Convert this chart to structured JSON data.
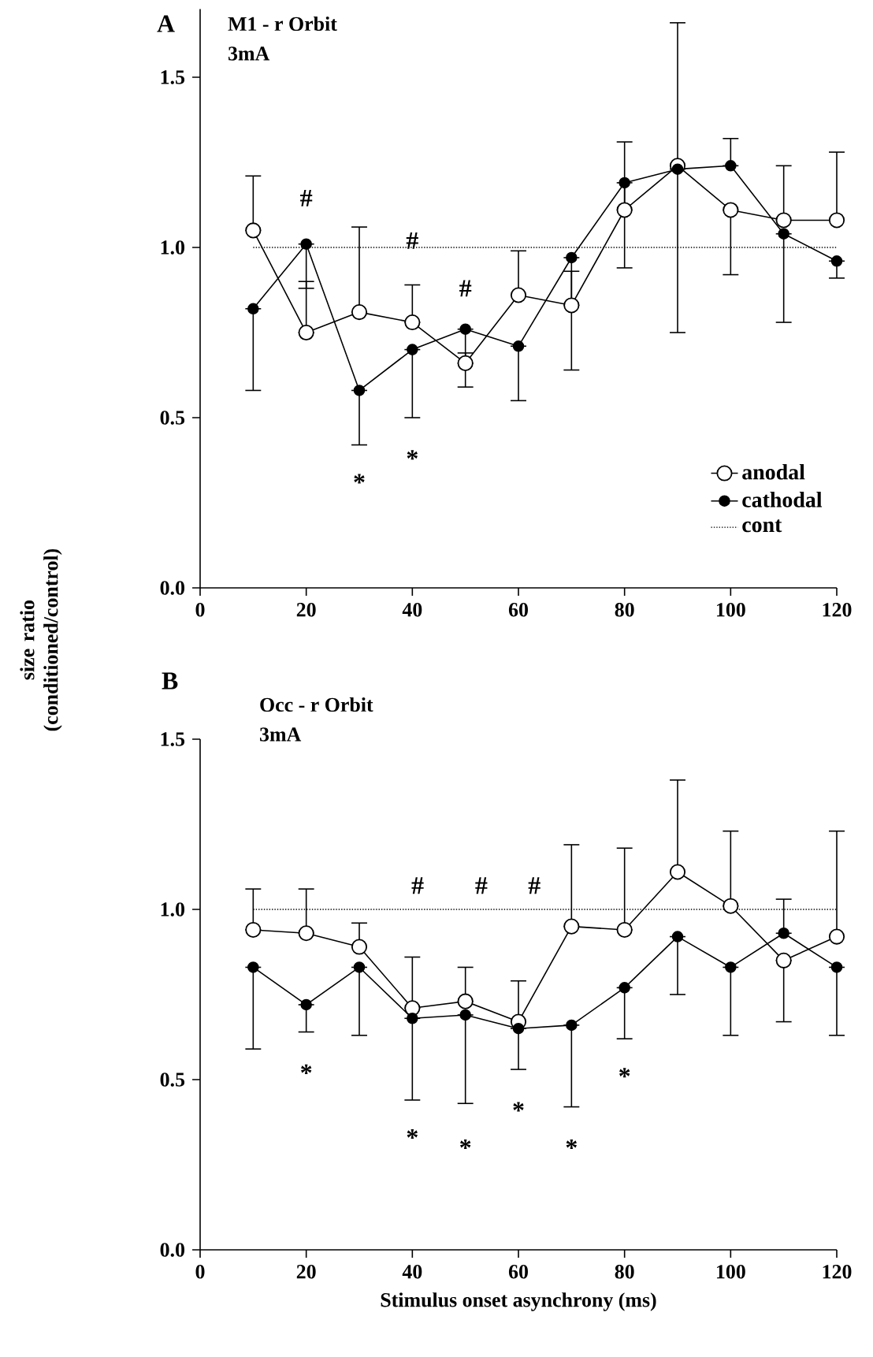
{
  "chart_data": [
    {
      "type": "line",
      "title": "A",
      "subtitle": "M1 - r Orbit",
      "ylabel": "size ratio (conditioned/control)",
      "x": [
        10,
        20,
        30,
        40,
        50,
        60,
        70,
        80,
        90,
        100,
        110,
        120
      ],
      "series": [
        {
          "name": "anodal",
          "color": "#000000",
          "values": [
            1.05,
            0.75,
            0.81,
            0.78,
            0.66,
            0.86,
            0.83,
            1.11,
            1.24,
            1.11,
            1.08,
            1.08
          ],
          "errors": [
            [
              1.05,
              1.21
            ],
            [
              0.75,
              0.9
            ],
            [
              0.81,
              1.06
            ],
            [
              0.78,
              0.89
            ],
            [
              0.66,
              0.69
            ],
            [
              0.86,
              0.99
            ],
            [
              0.83,
              0.93
            ],
            [
              1.11,
              1.31
            ],
            [
              1.24,
              1.66
            ],
            [
              0.92,
              1.11
            ],
            [
              1.08,
              1.24
            ],
            [
              1.08,
              1.28
            ]
          ]
        },
        {
          "name": "cathodal",
          "color": "#000000",
          "values": [
            0.82,
            1.01,
            0.58,
            0.7,
            0.76,
            0.71,
            0.97,
            1.19,
            1.23,
            1.24,
            1.04,
            0.96
          ],
          "errors": [
            [
              0.58,
              0.82
            ],
            [
              0.88,
              1.01
            ],
            [
              0.42,
              0.58
            ],
            [
              0.5,
              0.7
            ],
            [
              0.59,
              0.76
            ],
            [
              0.55,
              0.71
            ],
            [
              0.64,
              0.97
            ],
            [
              0.94,
              1.19
            ],
            [
              0.75,
              1.23
            ],
            [
              1.24,
              1.32
            ],
            [
              0.78,
              1.04
            ],
            [
              0.91,
              0.96
            ]
          ]
        }
      ],
      "ref_lines": [
        {
          "axis": "y",
          "value": 1.0,
          "label": "cont",
          "color": "#000000",
          "line_style": "dotted"
        }
      ],
      "marker": "circle",
      "line_style": "solid",
      "xlim": [
        0,
        120
      ],
      "xticks": [
        0,
        20,
        40,
        60,
        80,
        100,
        120
      ],
      "ylim": [
        0,
        1.7
      ],
      "yticks": [
        {
          "value": 0,
          "label": "0.0"
        },
        {
          "value": 0.5,
          "label": "0.5"
        },
        {
          "value": 1.0,
          "label": "1.0"
        },
        {
          "value": 1.5,
          "label": "1.5"
        }
      ],
      "legend": "bottom right",
      "annotations": [
        "3mA",
        "#",
        "#",
        "#",
        "*",
        "*"
      ]
    },
    {
      "type": "line",
      "title": "B",
      "subtitle": "Occ - r Orbit",
      "xlabel": "Stimulus onset  asynchrony (ms)",
      "x": [
        10,
        20,
        30,
        40,
        50,
        60,
        70,
        80,
        90,
        100,
        110,
        120
      ],
      "series": [
        {
          "color": "#000000",
          "values": [
            0.94,
            0.93,
            0.89,
            0.71,
            0.73,
            0.67,
            0.95,
            0.94,
            1.11,
            1.01,
            0.85,
            0.92
          ],
          "errors": [
            [
              0.94,
              1.06
            ],
            [
              0.93,
              1.06
            ],
            [
              0.89,
              0.96
            ],
            [
              0.71,
              0.86
            ],
            [
              0.73,
              0.83
            ],
            [
              0.67,
              0.79
            ],
            [
              0.95,
              1.19
            ],
            [
              0.94,
              1.18
            ],
            [
              1.11,
              1.38
            ],
            [
              1.01,
              1.23
            ],
            [
              0.67,
              0.85
            ],
            [
              0.92,
              1.23
            ]
          ]
        },
        {
          "color": "#000000",
          "values": [
            0.83,
            0.72,
            0.83,
            0.68,
            0.69,
            0.65,
            0.66,
            0.77,
            0.92,
            0.83,
            0.93,
            0.83
          ],
          "errors": [
            [
              0.59,
              0.83
            ],
            [
              0.64,
              0.72
            ],
            [
              0.63,
              0.83
            ],
            [
              0.44,
              0.68
            ],
            [
              0.43,
              0.69
            ],
            [
              0.53,
              0.65
            ],
            [
              0.42,
              0.66
            ],
            [
              0.62,
              0.77
            ],
            [
              0.75,
              0.92
            ],
            [
              0.63,
              0.83
            ],
            [
              0.93,
              1.03
            ],
            [
              0.63,
              0.83
            ]
          ]
        }
      ],
      "ref_lines": [
        {
          "axis": "y",
          "value": 1.0,
          "color": "#000000",
          "line_style": "dotted"
        }
      ],
      "marker": "circle",
      "line_style": "solid",
      "xlim": [
        0,
        120
      ],
      "xticks": [
        0,
        20,
        40,
        60,
        80,
        100,
        120
      ],
      "ylim": [
        0,
        1.5
      ],
      "yticks": [
        {
          "value": 0,
          "label": "0.0"
        },
        {
          "value": 0.5,
          "label": "0.5"
        },
        {
          "value": 1.0,
          "label": "1.0"
        },
        {
          "value": 1.5,
          "label": "1.5"
        }
      ],
      "annotations": [
        "3mA",
        "#",
        "#",
        "#",
        "*",
        "*",
        "*",
        "*",
        "*",
        "*"
      ]
    }
  ]
}
